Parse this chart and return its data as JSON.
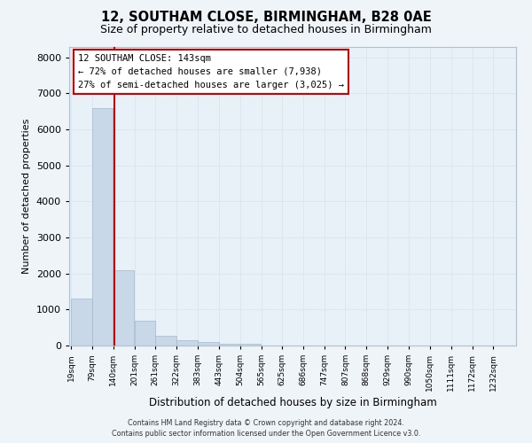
{
  "title1": "12, SOUTHAM CLOSE, BIRMINGHAM, B28 0AE",
  "title2": "Size of property relative to detached houses in Birmingham",
  "xlabel": "Distribution of detached houses by size in Birmingham",
  "ylabel": "Number of detached properties",
  "bin_labels": [
    "19sqm",
    "79sqm",
    "140sqm",
    "201sqm",
    "261sqm",
    "322sqm",
    "383sqm",
    "443sqm",
    "504sqm",
    "565sqm",
    "625sqm",
    "686sqm",
    "747sqm",
    "807sqm",
    "868sqm",
    "929sqm",
    "990sqm",
    "1050sqm",
    "1111sqm",
    "1172sqm",
    "1232sqm"
  ],
  "bin_edges": [
    19,
    79,
    140,
    201,
    261,
    322,
    383,
    443,
    504,
    565,
    625,
    686,
    747,
    807,
    868,
    929,
    990,
    1050,
    1111,
    1172,
    1232
  ],
  "bar_values": [
    1300,
    6600,
    2100,
    700,
    280,
    140,
    90,
    50,
    50,
    0,
    0,
    0,
    0,
    0,
    0,
    0,
    0,
    0,
    0,
    0
  ],
  "bar_color": "#c8d8e8",
  "bar_edgecolor": "#a0b8cc",
  "vline_x": 143,
  "vline_color": "#cc0000",
  "annotation_line1": "12 SOUTHAM CLOSE: 143sqm",
  "annotation_line2": "← 72% of detached houses are smaller (7,938)",
  "annotation_line3": "27% of semi-detached houses are larger (3,025) →",
  "annotation_box_edgecolor": "#cc0000",
  "ylim": [
    0,
    8300
  ],
  "yticks": [
    0,
    1000,
    2000,
    3000,
    4000,
    5000,
    6000,
    7000,
    8000
  ],
  "grid_color": "#d8e8f0",
  "plot_bg_color": "#e8f0f8",
  "fig_bg_color": "#eef4f8",
  "footer1": "Contains HM Land Registry data © Crown copyright and database right 2024.",
  "footer2": "Contains public sector information licensed under the Open Government Licence v3.0."
}
